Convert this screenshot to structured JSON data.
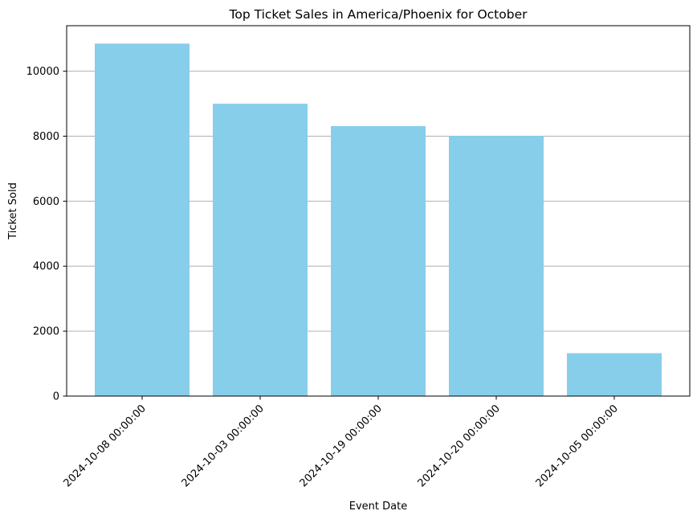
{
  "chart_data": {
    "type": "bar",
    "title": "Top Ticket Sales in America/Phoenix for October",
    "xlabel": "Event Date",
    "ylabel": "Ticket Sold",
    "categories": [
      "2024-10-08 00:00:00",
      "2024-10-03 00:00:00",
      "2024-10-19 00:00:00",
      "2024-10-20 00:00:00",
      "2024-10-05 00:00:00"
    ],
    "values": [
      10850,
      9000,
      8310,
      8010,
      1320
    ],
    "ylim": [
      0,
      11400
    ],
    "yticks": [
      0,
      2000,
      4000,
      6000,
      8000,
      10000
    ],
    "ytick_labels": [
      "0",
      "2000",
      "4000",
      "6000",
      "8000",
      "10000"
    ],
    "grid": "y-axis only",
    "bar_color": "#87ceeb",
    "grid_color": "#b0b0b0",
    "xtick_rotation": 45
  }
}
